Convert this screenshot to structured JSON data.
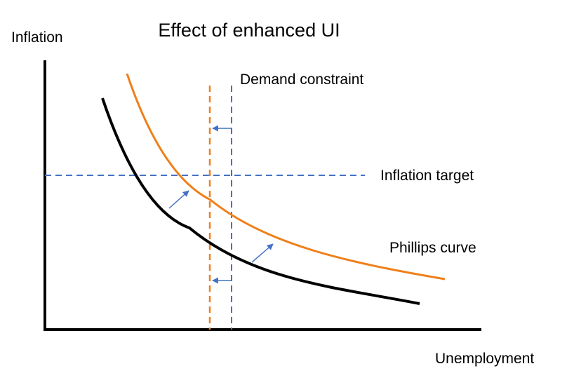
{
  "title": "Effect of enhanced UI",
  "axes": {
    "y_label": "Inflation",
    "x_label": "Unemployment"
  },
  "labels": {
    "demand_constraint": "Demand constraint",
    "inflation_target": "Inflation target",
    "phillips_curve": "Phillips curve"
  },
  "colors": {
    "axis": "#000000",
    "original_phillips_curve": "#000000",
    "shifted_phillips_curve": "#f07f1a",
    "original_demand_constraint": "#4472c4",
    "shifted_demand_constraint": "#f07f1a",
    "inflation_target_line": "#4472c4",
    "shift_arrows": "#4472c4"
  }
}
